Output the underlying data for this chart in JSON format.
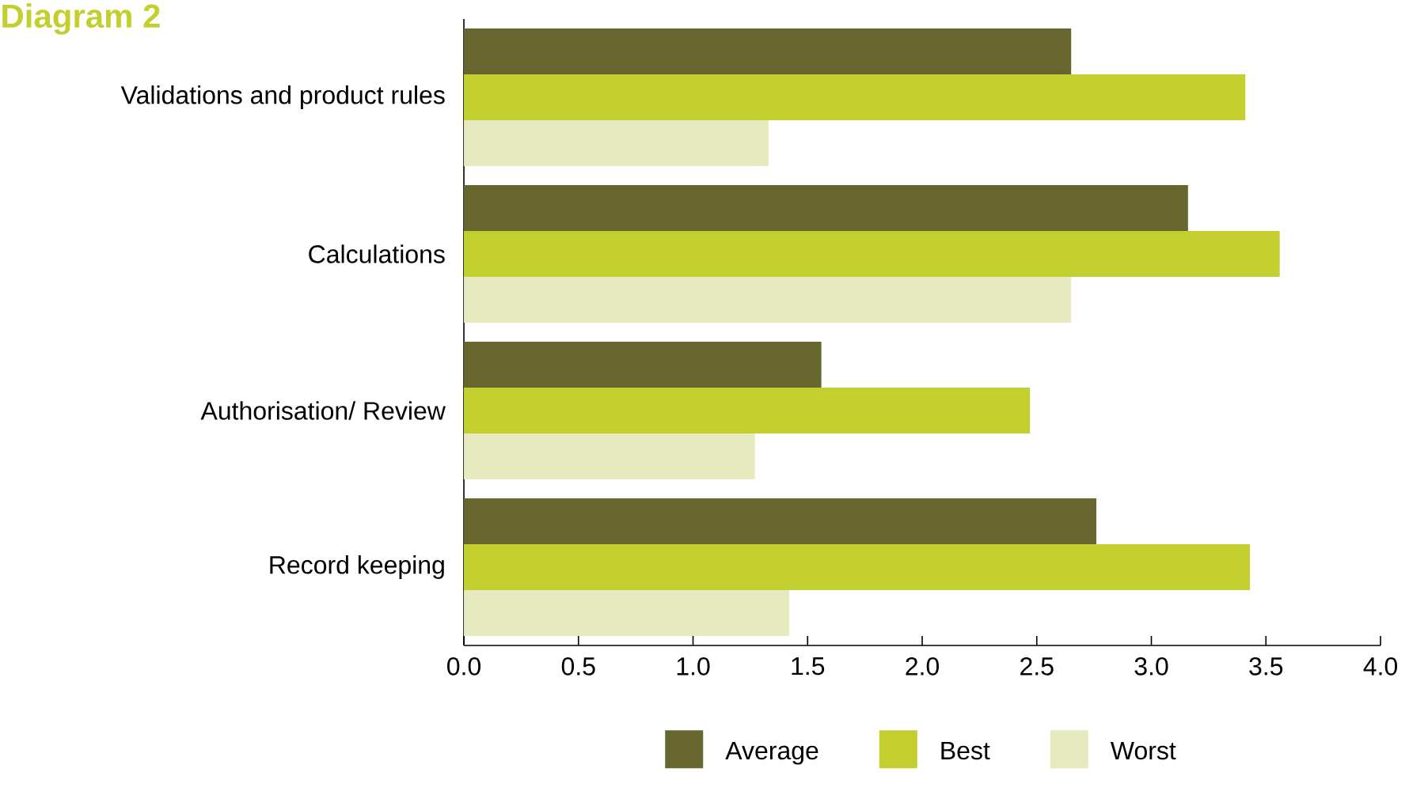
{
  "chart_data": {
    "type": "bar",
    "orientation": "horizontal",
    "title": "Diagram 2",
    "categories": [
      "Validations and product rules",
      "Calculations",
      "Authorisation/ Review",
      "Record keeping"
    ],
    "series": [
      {
        "name": "Average",
        "color": "#67662f",
        "values": [
          2.65,
          3.16,
          1.56,
          2.76
        ]
      },
      {
        "name": "Best",
        "color": "#c2cf2f",
        "values": [
          3.41,
          3.56,
          2.47,
          3.43
        ]
      },
      {
        "name": "Worst",
        "color": "#e6eabe",
        "values": [
          1.33,
          2.65,
          1.27,
          1.42
        ]
      }
    ],
    "xlim": [
      0,
      4
    ],
    "xticks": [
      {
        "value": 0,
        "label": "0.0"
      },
      0.5,
      {
        "value": 1,
        "label": "1.0"
      },
      1.5,
      {
        "value": 2,
        "label": "2.0"
      },
      2.5,
      {
        "value": 3,
        "label": "3.0"
      },
      3.5,
      {
        "value": 4,
        "label": "4.0"
      }
    ],
    "grid": false,
    "legend": "bottom"
  }
}
